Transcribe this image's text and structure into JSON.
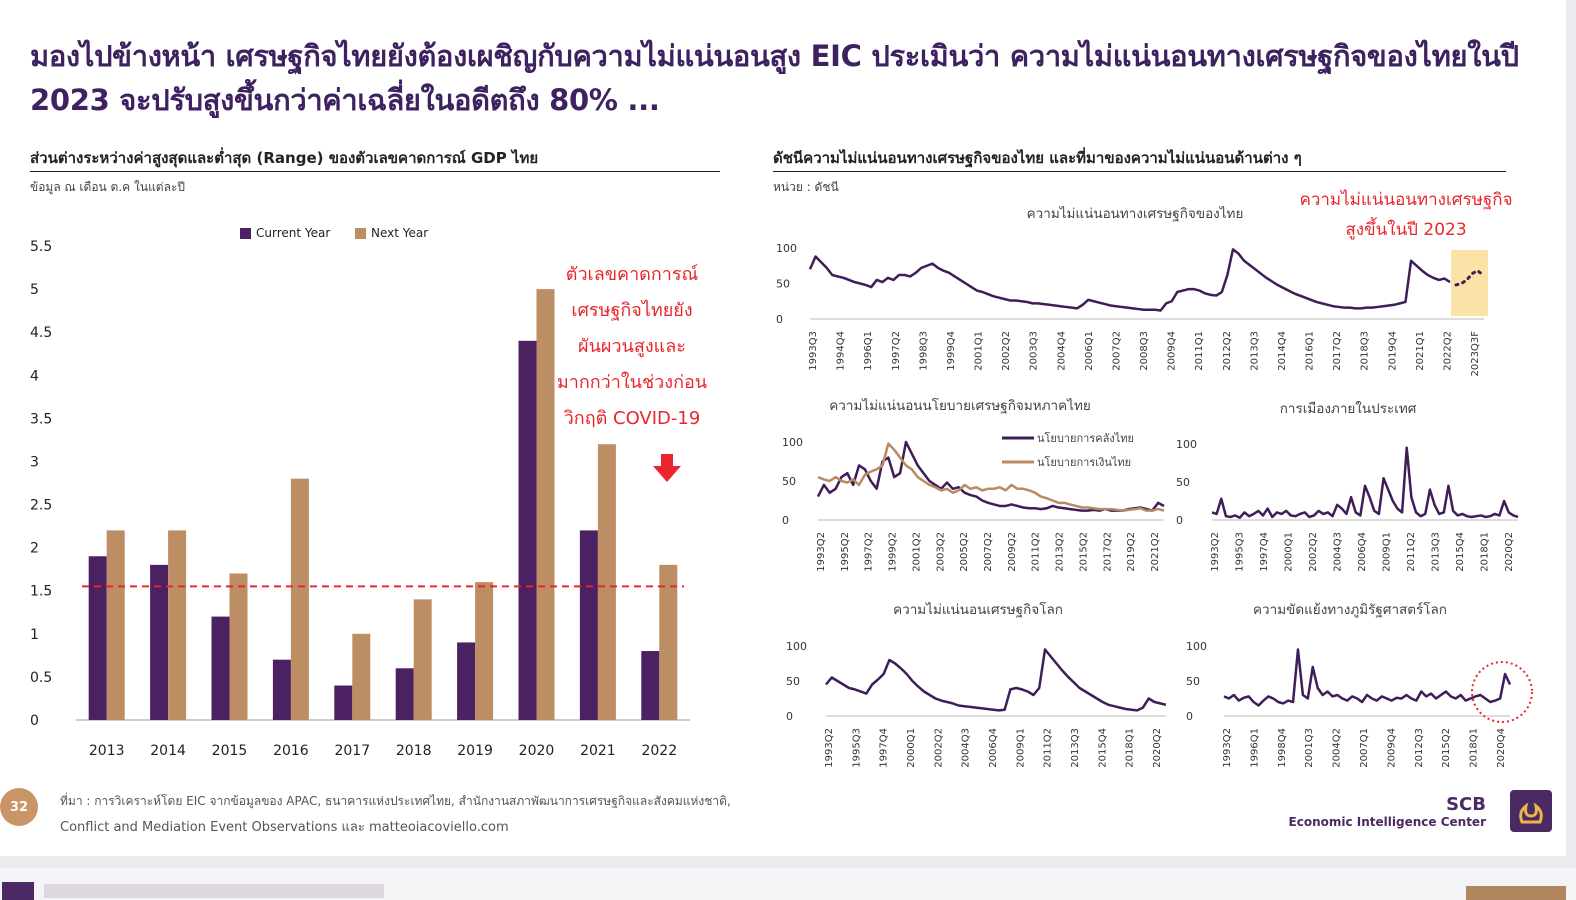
{
  "slide": {
    "title": "มองไปข้างหน้า เศรษฐกิจไทยยังต้องเผชิญกับความไม่แน่นอนสูง EIC ประเมินว่า ความไม่แน่นอนทางเศรษฐกิจของไทยในปี 2023 จะปรับสูงขึ้นกว่าค่าเฉลี่ยในอดีตถึง 80% ...",
    "page_number": "32",
    "source_line1": "ที่มา : การวิเคราะห์โดย EIC จากข้อมูลของ APAC, ธนาคารแห่งประเทศไทย, สำนักงานสภาพัฒนาการเศรษฐกิจและสังคมแห่งชาติ,",
    "source_line2": "Conflict and Mediation Event Observations และ matteoiacoviello.com",
    "logo_brand": "SCB",
    "logo_subtitle": "Economic Intelligence Center"
  },
  "left_panel": {
    "title": "ส่วนต่างระหว่างค่าสูงสุดและต่ำสุด (Range) ของตัวเลขคาดการณ์ GDP ไทย",
    "unit": "ข้อมูล ณ เดือน ต.ค ในแต่ละปี",
    "annotation": [
      "ตัวเลขคาดการณ์",
      "เศรษฐกิจไทยยัง",
      "ผันผวนสูงและ",
      "มากกว่าในช่วงก่อน",
      "วิกฤติ COVID-19"
    ]
  },
  "right_panel": {
    "title": "ดัชนีความไม่แน่นอนทางเศรษฐกิจของไทย และที่มาของความไม่แน่นอนด้านต่าง ๆ",
    "unit": "หน่วย : ดัชนี",
    "annotation": [
      "ความไม่แน่นอนทางเศรษฐกิจ",
      "สูงขึ้นในปี 2023"
    ]
  },
  "colors": {
    "current_year": "#4b2161",
    "next_year": "#bd8d63",
    "title": "#3e2160",
    "accent_red": "#e8262b",
    "line": "#3f1d58",
    "fiscal": "#3f1d58",
    "monetary": "#b88b63",
    "forecast_box": "#f9e3a6"
  },
  "chart_data": [
    {
      "id": "gdp_range",
      "type": "bar",
      "categories": [
        "2013",
        "2014",
        "2015",
        "2016",
        "2017",
        "2018",
        "2019",
        "2020",
        "2021",
        "2022"
      ],
      "series": [
        {
          "name": "Current Year",
          "values": [
            1.9,
            1.8,
            1.2,
            0.7,
            0.4,
            0.6,
            0.9,
            4.4,
            2.2,
            0.8
          ]
        },
        {
          "name": "Next Year",
          "values": [
            2.2,
            2.2,
            1.7,
            2.8,
            1.0,
            1.4,
            1.6,
            5.0,
            3.2,
            1.8
          ]
        }
      ],
      "average_line": 1.55,
      "ylim": [
        0,
        5.5
      ],
      "yticks": [
        "0",
        "0.5",
        "1",
        "1.5",
        "2",
        "2.5",
        "3",
        "3.5",
        "4",
        "4.5",
        "5",
        "5.5"
      ],
      "legend": "top"
    },
    {
      "id": "thai_euncertainty",
      "type": "line",
      "title": "ความไม่แน่นอนทางเศรษฐกิจของไทย",
      "ylim": [
        0,
        100
      ],
      "yticks": [
        "0",
        "50",
        "100"
      ],
      "xticks": [
        "1993Q3",
        "1994Q4",
        "1996Q1",
        "1997Q2",
        "1998Q3",
        "1999Q4",
        "2001Q1",
        "2002Q2",
        "2003Q3",
        "2004Q4",
        "2006Q1",
        "2007Q2",
        "2008Q3",
        "2009Q4",
        "2011Q1",
        "2012Q2",
        "2013Q3",
        "2014Q4",
        "2016Q1",
        "2017Q2",
        "2018Q3",
        "2019Q4",
        "2021Q1",
        "2022Q2",
        "2023Q3F"
      ],
      "series": [
        {
          "values": [
            70,
            88,
            80,
            72,
            62,
            60,
            58,
            55,
            52,
            50,
            48,
            45,
            55,
            52,
            58,
            55,
            62,
            62,
            60,
            65,
            72,
            75,
            78,
            72,
            68,
            65,
            60,
            55,
            50,
            45,
            40,
            38,
            35,
            32,
            30,
            28,
            26,
            26,
            25,
            24,
            22,
            22,
            21,
            20,
            19,
            18,
            17,
            16,
            15,
            20,
            27,
            25,
            23,
            21,
            19,
            18,
            17,
            16,
            15,
            14,
            13,
            13,
            13,
            12,
            22,
            25,
            38,
            40,
            42,
            42,
            40,
            36,
            34,
            33,
            38,
            62,
            98,
            92,
            82,
            76,
            70,
            64,
            58,
            53,
            48,
            44,
            40,
            36,
            33,
            30,
            27,
            24,
            22,
            20,
            18,
            17,
            16,
            16,
            15,
            15,
            16,
            16,
            17,
            18,
            19,
            20,
            22,
            24,
            82,
            75,
            68,
            62,
            58,
            55,
            57,
            52
          ]
        },
        {
          "name": "forecast",
          "values": [
            48,
            50,
            55,
            64,
            68,
            62
          ]
        }
      ]
    },
    {
      "id": "thai_policy",
      "type": "line",
      "title": "ความไม่แน่นอนนโยบายเศรษฐกิจมหภาคไทย",
      "ylim": [
        0,
        100
      ],
      "yticks": [
        "0",
        "50",
        "100"
      ],
      "xticks": [
        "1993Q2",
        "1995Q2",
        "1997Q2",
        "1999Q2",
        "2001Q2",
        "2003Q2",
        "2005Q2",
        "2007Q2",
        "2009Q2",
        "2011Q2",
        "2013Q2",
        "2015Q2",
        "2017Q2",
        "2019Q2",
        "2021Q2"
      ],
      "legend": "top-right",
      "series": [
        {
          "name": "นโยบายการคลังไทย",
          "values": [
            30,
            45,
            35,
            40,
            55,
            60,
            45,
            70,
            65,
            50,
            40,
            75,
            80,
            55,
            60,
            100,
            85,
            70,
            60,
            50,
            45,
            40,
            48,
            40,
            42,
            35,
            32,
            30,
            25,
            22,
            20,
            18,
            18,
            20,
            18,
            16,
            15,
            15,
            14,
            15,
            18,
            16,
            15,
            14,
            13,
            12,
            12,
            13,
            12,
            14,
            12,
            12,
            12,
            14,
            15,
            16,
            14,
            12,
            22,
            18
          ]
        },
        {
          "name": "นโยบายการเงินไทย",
          "values": [
            55,
            52,
            50,
            55,
            50,
            48,
            52,
            45,
            58,
            62,
            65,
            70,
            98,
            90,
            80,
            70,
            65,
            55,
            50,
            45,
            42,
            38,
            40,
            35,
            38,
            45,
            40,
            42,
            38,
            40,
            40,
            42,
            38,
            45,
            40,
            40,
            38,
            35,
            30,
            28,
            25,
            22,
            22,
            20,
            18,
            16,
            16,
            15,
            14,
            14,
            14,
            13,
            12,
            13,
            14,
            15,
            12,
            12,
            14,
            12
          ]
        }
      ]
    },
    {
      "id": "domestic_politics",
      "type": "line",
      "title": "การเมืองภายในประเทศ",
      "ylim": [
        0,
        100
      ],
      "yticks": [
        "0",
        "50",
        "100"
      ],
      "xticks": [
        "1993Q2",
        "1995Q3",
        "1997Q4",
        "2000Q1",
        "2002Q2",
        "2004Q3",
        "2006Q4",
        "2009Q1",
        "2011Q2",
        "2013Q3",
        "2015Q4",
        "2018Q1",
        "2020Q2"
      ],
      "series": [
        {
          "values": [
            10,
            8,
            28,
            5,
            4,
            6,
            3,
            10,
            5,
            8,
            12,
            6,
            15,
            4,
            10,
            8,
            12,
            6,
            5,
            8,
            10,
            4,
            6,
            12,
            8,
            10,
            5,
            20,
            15,
            8,
            30,
            10,
            6,
            45,
            30,
            12,
            8,
            55,
            40,
            25,
            15,
            10,
            95,
            30,
            10,
            5,
            8,
            40,
            20,
            8,
            10,
            45,
            12,
            6,
            8,
            5,
            4,
            5,
            6,
            4,
            5,
            8,
            6,
            25,
            10,
            6,
            4
          ]
        }
      ]
    },
    {
      "id": "world_uncertainty",
      "type": "line",
      "title": "ความไม่แน่นอนเศรษฐกิจโลก",
      "ylim": [
        0,
        100
      ],
      "yticks": [
        "0",
        "50",
        "100"
      ],
      "xticks": [
        "1993Q2",
        "1995Q3",
        "1997Q4",
        "2000Q1",
        "2002Q2",
        "2004Q3",
        "2006Q4",
        "2009Q1",
        "2011Q2",
        "2013Q3",
        "2015Q4",
        "2018Q1",
        "2020Q2"
      ],
      "series": [
        {
          "values": [
            45,
            55,
            50,
            45,
            40,
            38,
            35,
            32,
            45,
            52,
            60,
            80,
            75,
            68,
            60,
            50,
            42,
            35,
            30,
            25,
            22,
            20,
            18,
            15,
            14,
            13,
            12,
            11,
            10,
            9,
            8,
            9,
            38,
            40,
            38,
            35,
            30,
            40,
            95,
            85,
            75,
            65,
            56,
            48,
            40,
            35,
            30,
            25,
            20,
            16,
            14,
            12,
            10,
            9,
            8,
            12,
            25,
            20,
            18,
            16
          ]
        }
      ]
    },
    {
      "id": "geopolitical_conflict",
      "type": "line",
      "title": "ความขัดแย้งทางภูมิรัฐศาสตร์โลก",
      "ylim": [
        0,
        100
      ],
      "yticks": [
        "0",
        "50",
        "100"
      ],
      "xticks": [
        "1993Q2",
        "1996Q1",
        "1998Q4",
        "2001Q3",
        "2004Q2",
        "2007Q1",
        "2009Q4",
        "2012Q3",
        "2015Q2",
        "2018Q1",
        "2020Q4"
      ],
      "series": [
        {
          "values": [
            28,
            25,
            30,
            22,
            26,
            28,
            20,
            15,
            22,
            28,
            25,
            20,
            18,
            22,
            20,
            95,
            30,
            25,
            70,
            40,
            30,
            35,
            28,
            30,
            25,
            22,
            28,
            25,
            20,
            30,
            25,
            22,
            28,
            25,
            22,
            26,
            25,
            30,
            25,
            22,
            35,
            28,
            32,
            25,
            30,
            35,
            28,
            25,
            30,
            22,
            25,
            28,
            30,
            25,
            20,
            22,
            25,
            60,
            45
          ]
        }
      ]
    }
  ]
}
